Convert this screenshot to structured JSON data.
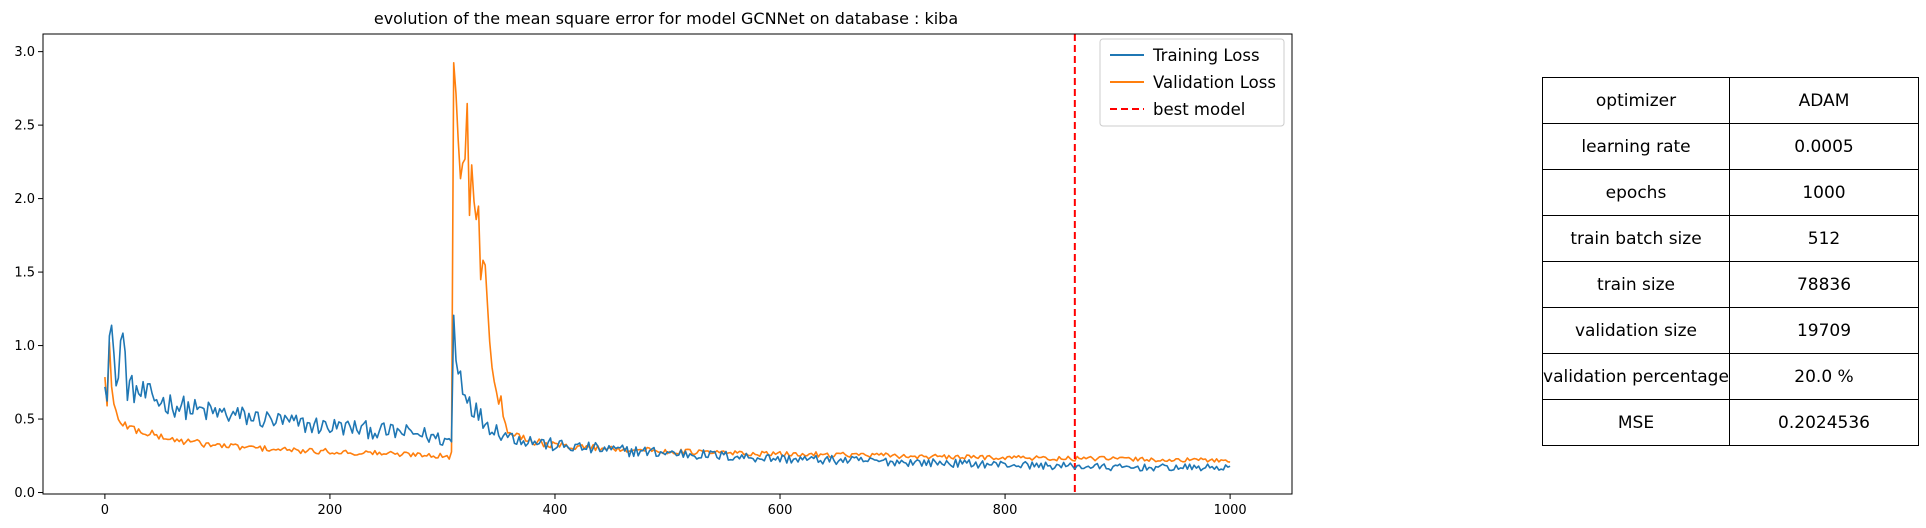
{
  "chart_data": {
    "type": "line",
    "title": "evolution of the mean square error for model GCNNet on database : kiba",
    "xlabel": "",
    "ylabel": "",
    "xlim": [
      -55,
      1055
    ],
    "ylim": [
      -0.01,
      3.12
    ],
    "xticks": [
      0,
      200,
      400,
      600,
      800,
      1000
    ],
    "yticks": [
      0.0,
      0.5,
      1.0,
      1.5,
      2.0,
      2.5,
      3.0
    ],
    "xtick_labels": [
      "0",
      "200",
      "400",
      "600",
      "800",
      "1000"
    ],
    "ytick_labels": [
      "0.0",
      "0.5",
      "1.0",
      "1.5",
      "2.0",
      "2.5",
      "3.0"
    ],
    "grid": false,
    "legend_position": "upper right",
    "series": [
      {
        "name": "Training Loss",
        "color": "#1f77b4",
        "x": [
          0,
          2,
          5,
          8,
          12,
          15,
          20,
          30,
          40,
          50,
          60,
          70,
          80,
          90,
          100,
          120,
          140,
          160,
          180,
          200,
          220,
          240,
          260,
          280,
          300,
          308,
          310,
          312,
          315,
          320,
          325,
          330,
          335,
          340,
          345,
          350,
          360,
          380,
          400,
          450,
          500,
          550,
          600,
          650,
          700,
          750,
          800,
          850,
          860,
          900,
          950,
          1000
        ],
        "y": [
          0.83,
          0.72,
          1.22,
          0.85,
          0.78,
          1.14,
          0.72,
          0.68,
          0.65,
          0.62,
          0.6,
          0.58,
          0.56,
          0.55,
          0.54,
          0.52,
          0.5,
          0.48,
          0.46,
          0.45,
          0.44,
          0.42,
          0.41,
          0.4,
          0.36,
          0.35,
          1.22,
          0.88,
          0.82,
          0.7,
          0.62,
          0.55,
          0.5,
          0.47,
          0.44,
          0.42,
          0.38,
          0.35,
          0.32,
          0.29,
          0.27,
          0.25,
          0.23,
          0.22,
          0.21,
          0.2,
          0.19,
          0.18,
          0.18,
          0.17,
          0.17,
          0.17
        ]
      },
      {
        "name": "Validation Loss",
        "color": "#ff7f0e",
        "x": [
          0,
          2,
          4,
          6,
          8,
          12,
          20,
          30,
          40,
          50,
          60,
          70,
          80,
          90,
          100,
          120,
          140,
          160,
          180,
          200,
          220,
          240,
          260,
          280,
          300,
          308,
          310,
          312,
          314,
          316,
          318,
          320,
          322,
          324,
          326,
          328,
          330,
          333,
          336,
          340,
          344,
          348,
          352,
          356,
          360,
          370,
          380,
          400,
          450,
          500,
          550,
          600,
          650,
          700,
          750,
          800,
          850,
          900,
          950,
          1000
        ],
        "y": [
          0.78,
          0.62,
          1.0,
          0.7,
          0.58,
          0.5,
          0.45,
          0.42,
          0.4,
          0.38,
          0.36,
          0.35,
          0.34,
          0.33,
          0.32,
          0.31,
          0.3,
          0.29,
          0.28,
          0.28,
          0.27,
          0.27,
          0.26,
          0.26,
          0.25,
          0.25,
          2.99,
          2.45,
          2.65,
          2.1,
          2.4,
          2.2,
          2.5,
          2.05,
          2.3,
          1.9,
          2.1,
          1.6,
          1.7,
          1.25,
          0.95,
          0.75,
          0.6,
          0.5,
          0.42,
          0.38,
          0.35,
          0.32,
          0.3,
          0.28,
          0.27,
          0.26,
          0.26,
          0.25,
          0.24,
          0.24,
          0.23,
          0.23,
          0.22,
          0.22
        ]
      },
      {
        "name": "best model",
        "color": "#ff0000",
        "style": "dashed",
        "vline_x": 862
      }
    ]
  },
  "params_table": {
    "rows": [
      {
        "name": "optimizer",
        "value": "ADAM"
      },
      {
        "name": "learning rate",
        "value": "0.0005"
      },
      {
        "name": "epochs",
        "value": "1000"
      },
      {
        "name": "train batch size",
        "value": "512"
      },
      {
        "name": "train size",
        "value": "78836"
      },
      {
        "name": "validation size",
        "value": "19709"
      },
      {
        "name": "validation percentage",
        "value": "20.0 %"
      },
      {
        "name": "MSE",
        "value": "0.2024536"
      }
    ]
  }
}
